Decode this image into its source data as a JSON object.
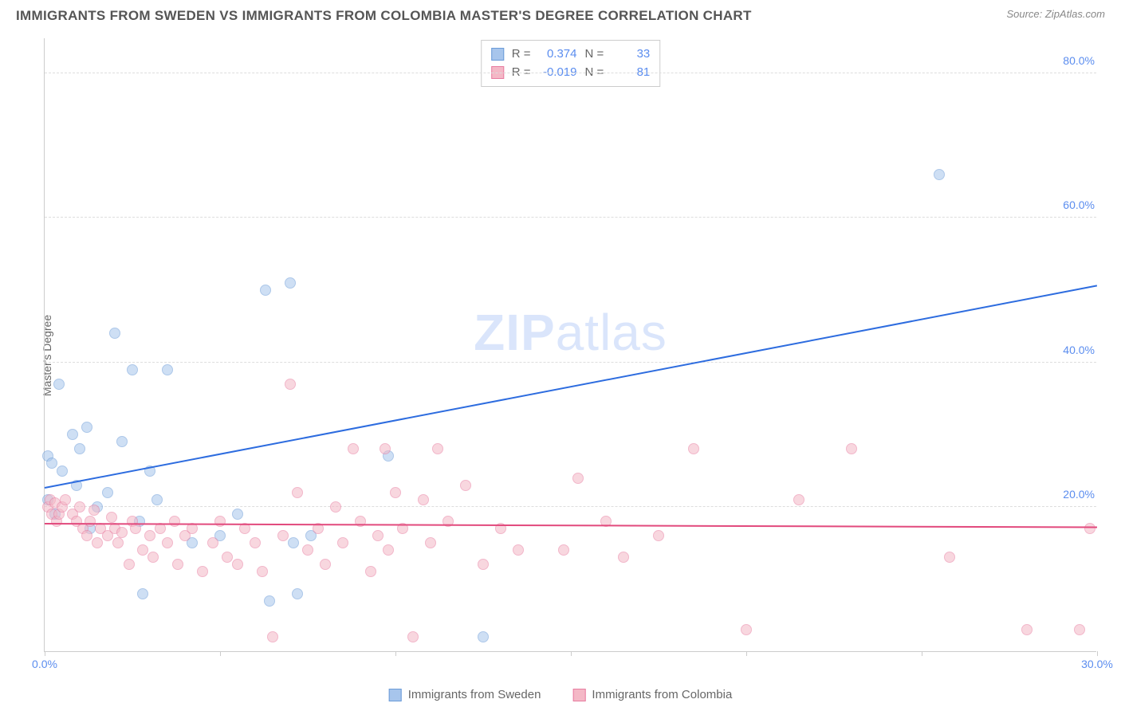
{
  "header": {
    "title": "IMMIGRANTS FROM SWEDEN VS IMMIGRANTS FROM COLOMBIA MASTER'S DEGREE CORRELATION CHART",
    "source": "Source: ZipAtlas.com"
  },
  "watermark": {
    "bold": "ZIP",
    "light": "atlas"
  },
  "chart": {
    "type": "scatter",
    "ylabel": "Master's Degree",
    "xlim": [
      0,
      30
    ],
    "ylim": [
      0,
      85
    ],
    "yticks": [
      20,
      40,
      60,
      80
    ],
    "ytick_labels": [
      "20.0%",
      "40.0%",
      "60.0%",
      "80.0%"
    ],
    "xticks": [
      0,
      5,
      10,
      15,
      20,
      25,
      30
    ],
    "xtick_labels": [
      "0.0%",
      "",
      "",
      "",
      "",
      "",
      "30.0%"
    ],
    "grid_color": "#dddddd",
    "background_color": "#ffffff",
    "series": [
      {
        "name": "Immigrants from Sweden",
        "color_fill": "#a7c5ec",
        "color_stroke": "#6a9bd8",
        "marker_radius": 7,
        "fill_opacity": 0.55,
        "r_label": "R =",
        "r_value": "0.374",
        "n_label": "N =",
        "n_value": "33",
        "trend": {
          "x1": 0,
          "y1": 22.5,
          "x2": 30,
          "y2": 50.5,
          "color": "#2d6cdf",
          "width": 2
        },
        "points": [
          [
            0.1,
            21
          ],
          [
            0.3,
            19
          ],
          [
            0.1,
            27
          ],
          [
            0.2,
            26
          ],
          [
            0.4,
            37
          ],
          [
            0.5,
            25
          ],
          [
            0.8,
            30
          ],
          [
            0.9,
            23
          ],
          [
            1.0,
            28
          ],
          [
            1.2,
            31
          ],
          [
            1.3,
            17
          ],
          [
            1.5,
            20
          ],
          [
            1.8,
            22
          ],
          [
            2.0,
            44
          ],
          [
            2.2,
            29
          ],
          [
            2.5,
            39
          ],
          [
            2.7,
            18
          ],
          [
            2.8,
            8
          ],
          [
            3.0,
            25
          ],
          [
            3.2,
            21
          ],
          [
            3.5,
            39
          ],
          [
            4.2,
            15
          ],
          [
            5.0,
            16
          ],
          [
            5.5,
            19
          ],
          [
            6.3,
            50
          ],
          [
            6.4,
            7
          ],
          [
            7.0,
            51
          ],
          [
            7.1,
            15
          ],
          [
            7.2,
            8
          ],
          [
            7.6,
            16
          ],
          [
            9.8,
            27
          ],
          [
            12.5,
            2
          ],
          [
            25.5,
            66
          ]
        ]
      },
      {
        "name": "Immigrants from Colombia",
        "color_fill": "#f4b8c6",
        "color_stroke": "#e87ca0",
        "marker_radius": 7,
        "fill_opacity": 0.55,
        "r_label": "R =",
        "r_value": "-0.019",
        "n_label": "N =",
        "n_value": "81",
        "trend": {
          "x1": 0,
          "y1": 17.5,
          "x2": 30,
          "y2": 17.0,
          "color": "#e24a7d",
          "width": 2
        },
        "points": [
          [
            0.1,
            20
          ],
          [
            0.15,
            21
          ],
          [
            0.2,
            19
          ],
          [
            0.3,
            20.5
          ],
          [
            0.35,
            18
          ],
          [
            0.4,
            19
          ],
          [
            0.5,
            20
          ],
          [
            0.6,
            21
          ],
          [
            0.8,
            19
          ],
          [
            0.9,
            18
          ],
          [
            1.0,
            20
          ],
          [
            1.1,
            17
          ],
          [
            1.2,
            16
          ],
          [
            1.3,
            18
          ],
          [
            1.4,
            19.5
          ],
          [
            1.5,
            15
          ],
          [
            1.6,
            17
          ],
          [
            1.8,
            16
          ],
          [
            1.9,
            18.5
          ],
          [
            2.0,
            17
          ],
          [
            2.1,
            15
          ],
          [
            2.2,
            16.5
          ],
          [
            2.4,
            12
          ],
          [
            2.5,
            18
          ],
          [
            2.6,
            17
          ],
          [
            2.8,
            14
          ],
          [
            3.0,
            16
          ],
          [
            3.1,
            13
          ],
          [
            3.3,
            17
          ],
          [
            3.5,
            15
          ],
          [
            3.7,
            18
          ],
          [
            3.8,
            12
          ],
          [
            4.0,
            16
          ],
          [
            4.2,
            17
          ],
          [
            4.5,
            11
          ],
          [
            4.8,
            15
          ],
          [
            5.0,
            18
          ],
          [
            5.2,
            13
          ],
          [
            5.5,
            12
          ],
          [
            5.7,
            17
          ],
          [
            6.0,
            15
          ],
          [
            6.2,
            11
          ],
          [
            6.5,
            2
          ],
          [
            6.8,
            16
          ],
          [
            7.0,
            37
          ],
          [
            7.2,
            22
          ],
          [
            7.5,
            14
          ],
          [
            7.8,
            17
          ],
          [
            8.0,
            12
          ],
          [
            8.3,
            20
          ],
          [
            8.5,
            15
          ],
          [
            8.8,
            28
          ],
          [
            9.0,
            18
          ],
          [
            9.3,
            11
          ],
          [
            9.5,
            16
          ],
          [
            9.7,
            28
          ],
          [
            9.8,
            14
          ],
          [
            10.0,
            22
          ],
          [
            10.2,
            17
          ],
          [
            10.5,
            2
          ],
          [
            10.8,
            21
          ],
          [
            11.0,
            15
          ],
          [
            11.2,
            28
          ],
          [
            11.5,
            18
          ],
          [
            12.0,
            23
          ],
          [
            12.5,
            12
          ],
          [
            13.0,
            17
          ],
          [
            13.5,
            14
          ],
          [
            14.8,
            14
          ],
          [
            15.2,
            24
          ],
          [
            16.0,
            18
          ],
          [
            16.5,
            13
          ],
          [
            17.5,
            16
          ],
          [
            18.5,
            28
          ],
          [
            20.0,
            3
          ],
          [
            21.5,
            21
          ],
          [
            23.0,
            28
          ],
          [
            25.8,
            13
          ],
          [
            28.0,
            3
          ],
          [
            29.5,
            3
          ],
          [
            29.8,
            17
          ]
        ]
      }
    ]
  },
  "bottom_legend": {
    "items": [
      {
        "swatch_fill": "#a7c5ec",
        "swatch_stroke": "#6a9bd8",
        "label": "Immigrants from Sweden"
      },
      {
        "swatch_fill": "#f4b8c6",
        "swatch_stroke": "#e87ca0",
        "label": "Immigrants from Colombia"
      }
    ]
  }
}
